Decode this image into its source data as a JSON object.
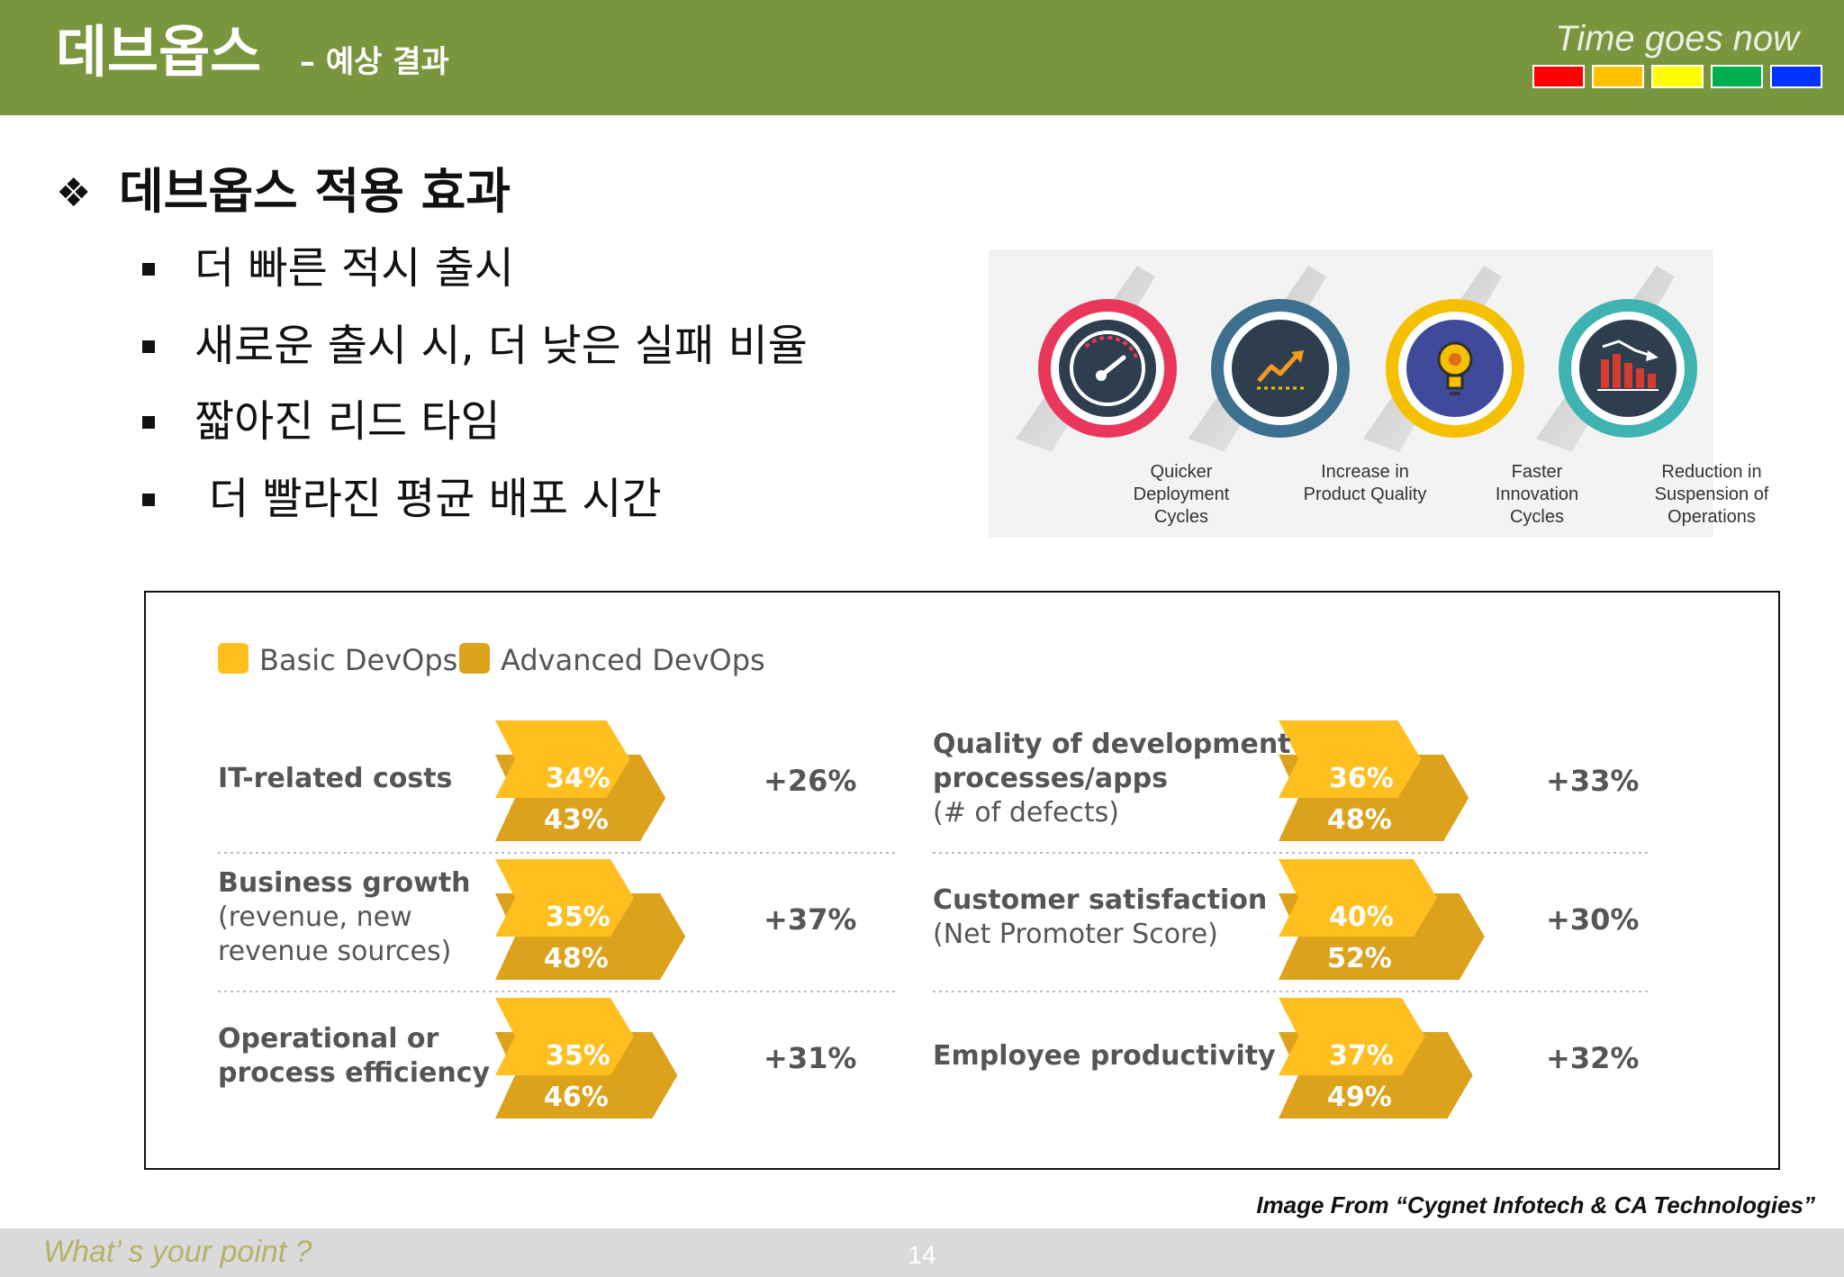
{
  "header": {
    "title": "데브옵스",
    "subtitle": "– 예상 결과",
    "tagline": "Time goes now",
    "swatch_colors": [
      "#ff0000",
      "#ffc000",
      "#ffff00",
      "#00b050",
      "#0033ff"
    ]
  },
  "section": {
    "marker": "❖",
    "title": "데브옵스 적용 효과",
    "bullets": [
      "더 빠른 적시 출시",
      "새로운 출시 시, 더 낮은 실패 비율",
      "짧아진 리드 타임",
      "더 빨라진 평균 배포 시간"
    ]
  },
  "benefits": [
    {
      "icon": "speedometer-icon",
      "color": "#e8375b",
      "label_lines": [
        "Quicker",
        "Deployment",
        "Cycles"
      ]
    },
    {
      "icon": "trend-up-icon",
      "color": "#3d6f8f",
      "label_lines": [
        "Increase in",
        "Product Quality"
      ]
    },
    {
      "icon": "gear-bulb-icon",
      "color": "#f5c000",
      "label_lines": [
        "Faster",
        "Innovation",
        "Cycles"
      ]
    },
    {
      "icon": "bar-decline-icon",
      "color": "#3fb3b1",
      "label_lines": [
        "Reduction in",
        "Suspension of",
        "Operations"
      ]
    }
  ],
  "chart_data": {
    "type": "bar",
    "legend": [
      {
        "name": "Basic DevOps",
        "color": "#ffbf1f"
      },
      {
        "name": "Advanced DevOps",
        "color": "#dda21c"
      }
    ],
    "legend_position": "top-left",
    "grid": false,
    "metrics": [
      {
        "label_lines": [
          {
            "text": "IT-related costs",
            "bold": true
          }
        ],
        "basic": 34,
        "advanced": 43,
        "change": "+26%"
      },
      {
        "label_lines": [
          {
            "text": "Business growth",
            "bold": true
          },
          {
            "text": "(revenue, new",
            "bold": false
          },
          {
            "text": "revenue sources)",
            "bold": false
          }
        ],
        "basic": 35,
        "advanced": 48,
        "change": "+37%"
      },
      {
        "label_lines": [
          {
            "text": "Operational or",
            "bold": true
          },
          {
            "text": "process efficiency",
            "bold": true
          }
        ],
        "basic": 35,
        "advanced": 46,
        "change": "+31%"
      },
      {
        "label_lines": [
          {
            "text": "Quality of development",
            "bold": true
          },
          {
            "text": "processes/apps",
            "bold": true
          },
          {
            "text": "(# of defects)",
            "bold": false
          }
        ],
        "basic": 36,
        "advanced": 48,
        "change": "+33%"
      },
      {
        "label_lines": [
          {
            "text": "Customer satisfaction",
            "bold": true
          },
          {
            "text": "(Net Promoter Score)",
            "bold": false
          }
        ],
        "basic": 40,
        "advanced": 52,
        "change": "+30%"
      },
      {
        "label_lines": [
          {
            "text": "Employee productivity",
            "bold": true
          }
        ],
        "basic": 37,
        "advanced": 49,
        "change": "+32%"
      }
    ]
  },
  "caption": "Image From “Cygnet Infotech & CA Technologies”",
  "footer": {
    "text": "What’ s your point ?",
    "page_number": "14"
  }
}
